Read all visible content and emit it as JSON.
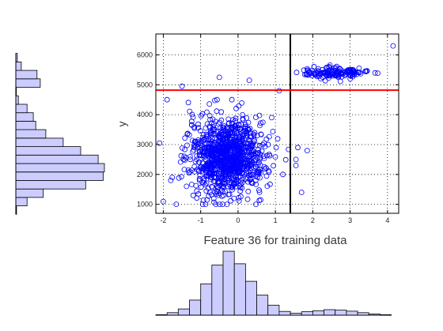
{
  "chart_data": [
    {
      "name": "main-scatter",
      "type": "scatter",
      "title": "",
      "xlabel": "Feature 36 for training data",
      "ylabel": "y",
      "xlim": [
        -2.2,
        4.3
      ],
      "ylim": [
        700,
        6700
      ],
      "xticks": [
        -2,
        -1,
        0,
        1,
        2,
        3,
        4
      ],
      "yticks": [
        1000,
        2000,
        3000,
        4000,
        5000,
        6000
      ],
      "xtick_labels": [
        "-2",
        "-1",
        "0",
        "1",
        "2",
        "3",
        "4"
      ],
      "ytick_labels": [
        "1000",
        "2000",
        "3000",
        "4000",
        "5000",
        "6000"
      ],
      "grid": true,
      "marker": "open-circle",
      "marker_color": "#0000ff",
      "clusters": [
        {
          "name": "main-cluster",
          "center_x": -0.3,
          "center_y": 2600,
          "sd_x": 0.5,
          "sd_y": 620,
          "count": 1050
        },
        {
          "name": "upper-band",
          "center_x": 2.6,
          "center_y": 5400,
          "sd_x": 0.42,
          "sd_y": 90,
          "count": 150
        }
      ],
      "extra_points": [
        {
          "x": 4.15,
          "y": 6300
        },
        {
          "x": -1.5,
          "y": 4950
        },
        {
          "x": -1.9,
          "y": 4500
        },
        {
          "x": -0.5,
          "y": 5250
        },
        {
          "x": 0.3,
          "y": 5150
        },
        {
          "x": 1.1,
          "y": 4800
        },
        {
          "x": 1.6,
          "y": 2900
        },
        {
          "x": 1.85,
          "y": 2800
        },
        {
          "x": 1.55,
          "y": 2500
        },
        {
          "x": 1.55,
          "y": 2300
        },
        {
          "x": 1.7,
          "y": 1400
        },
        {
          "x": -2.1,
          "y": 3050
        },
        {
          "x": -1.8,
          "y": 1800
        },
        {
          "x": -1.2,
          "y": 1300
        },
        {
          "x": 0.9,
          "y": 3900
        },
        {
          "x": 1.2,
          "y": 2000
        }
      ],
      "reference_lines": [
        {
          "name": "vertical-threshold",
          "orientation": "vertical",
          "value": 1.4,
          "color": "#000000"
        },
        {
          "name": "horizontal-threshold",
          "orientation": "horizontal",
          "value": 4820,
          "color": "#ff0000"
        }
      ]
    },
    {
      "name": "y-marginal-histogram",
      "type": "bar",
      "orientation": "horizontal",
      "bin_centers": [
        900,
        1200,
        1500,
        1800,
        2100,
        2400,
        2700,
        3000,
        3300,
        3600,
        3900,
        4200,
        4500,
        4800,
        5100,
        5400,
        5700,
        6000,
        6300
      ],
      "values": [
        3,
        45,
        110,
        280,
        350,
        355,
        330,
        260,
        190,
        120,
        80,
        70,
        45,
        10,
        2,
        98,
        85,
        22,
        6
      ],
      "fill_color": "#ccccff",
      "edge_color": "#000000"
    },
    {
      "name": "x-marginal-histogram",
      "type": "bar",
      "bin_centers": [
        -2.05,
        -1.75,
        -1.45,
        -1.15,
        -0.85,
        -0.55,
        -0.25,
        0.05,
        0.35,
        0.65,
        0.95,
        1.25,
        1.55,
        1.85,
        2.15,
        2.45,
        2.75,
        3.05,
        3.35,
        3.65,
        3.95
      ],
      "values": [
        2,
        10,
        25,
        60,
        125,
        200,
        255,
        205,
        135,
        80,
        40,
        15,
        8,
        14,
        18,
        22,
        20,
        16,
        10,
        5,
        2
      ],
      "fill_color": "#ccccff",
      "edge_color": "#000000"
    }
  ]
}
